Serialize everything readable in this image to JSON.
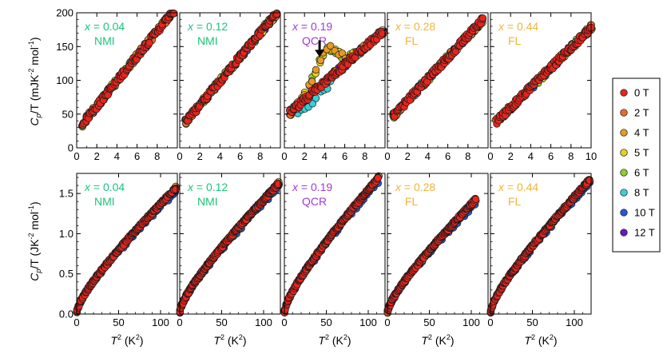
{
  "chart_data": {
    "type": "scatter",
    "field_series": [
      {
        "name": "0 T",
        "color": "#e8251c"
      },
      {
        "name": "2 T",
        "color": "#ea6a2a"
      },
      {
        "name": "4 T",
        "color": "#e89a24"
      },
      {
        "name": "5 T",
        "color": "#e6d21e"
      },
      {
        "name": "6 T",
        "color": "#8ccf2e"
      },
      {
        "name": "8 T",
        "color": "#38d0d8"
      },
      {
        "name": "10 T",
        "color": "#2458d8"
      },
      {
        "name": "12 T",
        "color": "#6a18c0"
      }
    ],
    "rows": [
      {
        "ylabel": "C_p/T (mJK^-2 mol^-1)",
        "ylabel_parts": {
          "C": "C",
          "p": "p",
          "slashT": "/T",
          "unit": " (mJK",
          "e1": "-2",
          "mol": " mol",
          "e2": "-1",
          "close": ")"
        },
        "ylim": [
          0,
          200
        ],
        "yticks": [
          0,
          50,
          100,
          150,
          200
        ],
        "xlim": [
          0,
          10
        ],
        "xticks_label": [
          "0",
          "2",
          "4",
          "6",
          "8"
        ],
        "xticks_last": "10"
      },
      {
        "ylabel": "C_p/T (JK^-2 mol^-1)",
        "ylabel_parts": {
          "C": "C",
          "p": "p",
          "slashT": "/T",
          "unit": " (JK",
          "e1": "-2",
          "mol": " mol",
          "e2": "-1",
          "close": ")"
        },
        "ylim": [
          0,
          1.75
        ],
        "yticks": [
          "0.0",
          "0.5",
          "1.0",
          "1.5"
        ],
        "xlim": [
          0,
          120
        ],
        "xticks_label": [
          "0",
          "50",
          "100"
        ],
        "xlabel": "T^2 (K^2)",
        "xlabel_parts": {
          "T": "T",
          "sup": "2",
          "unit": " (K",
          "sup2": "2",
          "close": ")"
        }
      }
    ],
    "panels": [
      {
        "x_text": "x = 0.04",
        "phase": "NMI",
        "color": "#1bc47a",
        "row0_max": 9.6,
        "row1_max": 118,
        "slope0": 18.5,
        "int0": 25,
        "row1_top": 1.6
      },
      {
        "x_text": "x = 0.12",
        "phase": "NMI",
        "color": "#1bc47a",
        "row0_max": 9.6,
        "row1_max": 118,
        "slope0": 17.8,
        "int0": 28,
        "row1_top": 1.66
      },
      {
        "x_text": "x = 0.19",
        "phase": "QCR",
        "color": "#a03ad8",
        "row0_max": 9.8,
        "row1_max": 112,
        "slope0": 13.0,
        "int0": 45,
        "row1_top": 1.73
      },
      {
        "x_text": "x = 0.28",
        "phase": "FL",
        "color": "#f0b43a",
        "row0_max": 9.4,
        "row1_max": 105,
        "slope0": 16.0,
        "int0": 38,
        "row1_top": 1.45
      },
      {
        "x_text": "x = 0.44",
        "phase": "FL",
        "color": "#f0b43a",
        "row0_max": 10.0,
        "row1_max": 118,
        "slope0": 14.8,
        "int0": 30,
        "row1_top": 1.7
      }
    ],
    "annotation": {
      "panel": 2,
      "row": 0,
      "type": "arrow",
      "x": 3.5,
      "y": 138
    }
  }
}
